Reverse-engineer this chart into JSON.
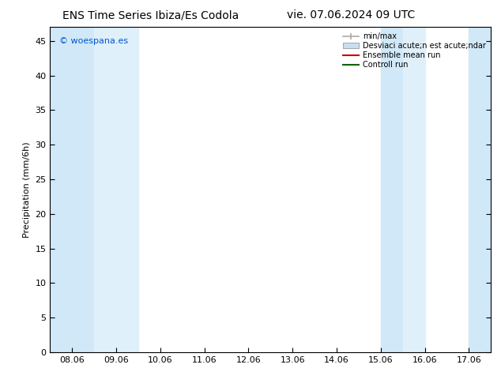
{
  "title_left": "ENS Time Series Ibiza/Es Codola",
  "title_right": "vie. 07.06.2024 09 UTC",
  "ylabel": "Precipitation (mm/6h)",
  "watermark": "© woespana.es",
  "xtick_labels": [
    "08.06",
    "09.06",
    "10.06",
    "11.06",
    "12.06",
    "13.06",
    "14.06",
    "15.06",
    "16.06",
    "17.06"
  ],
  "xtick_positions": [
    0,
    1,
    2,
    3,
    4,
    5,
    6,
    7,
    8,
    9
  ],
  "ylim": [
    0,
    47
  ],
  "yticks": [
    0,
    5,
    10,
    15,
    20,
    25,
    30,
    35,
    40,
    45
  ],
  "xlim": [
    -0.5,
    9.5
  ],
  "shaded_bands": [
    {
      "xstart": -0.5,
      "xend": 0.5,
      "color": "#d0e8f8"
    },
    {
      "xstart": 0.5,
      "xend": 1.5,
      "color": "#e0f0fb"
    },
    {
      "xstart": 7.0,
      "xend": 7.5,
      "color": "#d0e8f8"
    },
    {
      "xstart": 7.5,
      "xend": 8.0,
      "color": "#e0f0fb"
    },
    {
      "xstart": 9.0,
      "xend": 9.5,
      "color": "#d0e8f8"
    }
  ],
  "legend_entries": [
    {
      "label": "min/max",
      "color": "#aaaaaa",
      "type": "errbar"
    },
    {
      "label": "Desviaci acute;n est acute;ndar",
      "color": "#c8dff0",
      "type": "patch"
    },
    {
      "label": "Ensemble mean run",
      "color": "#cc0000",
      "type": "line",
      "linewidth": 1.5
    },
    {
      "label": "Controll run",
      "color": "#006600",
      "type": "line",
      "linewidth": 1.5
    }
  ],
  "background_color": "#ffffff",
  "plot_bg_color": "#ffffff",
  "title_fontsize": 10,
  "watermark_color": "#0055cc",
  "watermark_fontsize": 8,
  "axis_label_fontsize": 8,
  "tick_fontsize": 8,
  "legend_fontsize": 7
}
